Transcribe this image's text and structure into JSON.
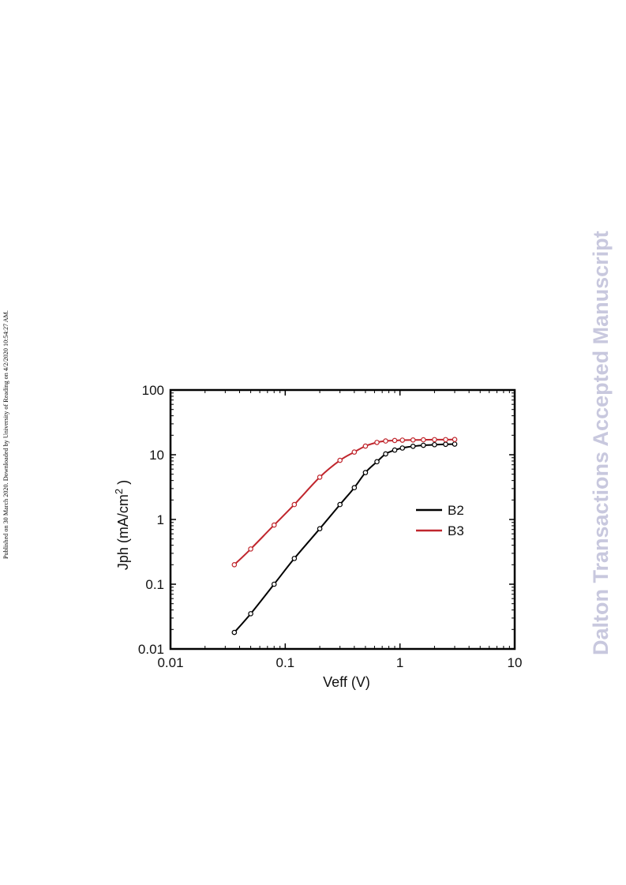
{
  "side_note": "Published on 30 March 2020. Downloaded by University of Reading on 4/2/2020 10:54:27 AM.",
  "watermark": "Dalton Transactions Accepted Manuscript",
  "chart_data": {
    "type": "line",
    "title": "",
    "xlabel": "Veff (V)",
    "ylabel_main": "Jph (mA/cm",
    "ylabel_sup": "2",
    "ylabel_close": " )",
    "xscale": "log",
    "yscale": "log",
    "xlim": [
      0.01,
      10
    ],
    "ylim": [
      0.01,
      100
    ],
    "x_tick_labels": [
      "0.01",
      "0.1",
      "1",
      "10"
    ],
    "y_tick_labels": [
      "100",
      "10",
      "1",
      "0.1",
      "0.01"
    ],
    "grid": false,
    "legend_position": "center-right",
    "series": [
      {
        "name": "B2",
        "color": "#000000",
        "x": [
          0.036,
          0.05,
          0.08,
          0.12,
          0.2,
          0.3,
          0.4,
          0.5,
          0.63,
          0.75,
          0.9,
          1.05,
          1.3,
          1.6,
          2.0,
          2.5,
          3.0
        ],
        "y": [
          0.018,
          0.035,
          0.1,
          0.25,
          0.72,
          1.7,
          3.1,
          5.3,
          7.8,
          10.3,
          11.8,
          12.7,
          13.5,
          14.0,
          14.3,
          14.5,
          14.6
        ]
      },
      {
        "name": "B3",
        "color": "#c0262d",
        "x": [
          0.036,
          0.05,
          0.08,
          0.12,
          0.2,
          0.3,
          0.4,
          0.5,
          0.63,
          0.75,
          0.9,
          1.05,
          1.3,
          1.6,
          2.0,
          2.5,
          3.0
        ],
        "y": [
          0.2,
          0.35,
          0.82,
          1.7,
          4.5,
          8.2,
          11.0,
          13.6,
          15.5,
          16.3,
          16.6,
          16.8,
          16.9,
          17.0,
          17.1,
          17.1,
          17.2
        ]
      }
    ]
  }
}
